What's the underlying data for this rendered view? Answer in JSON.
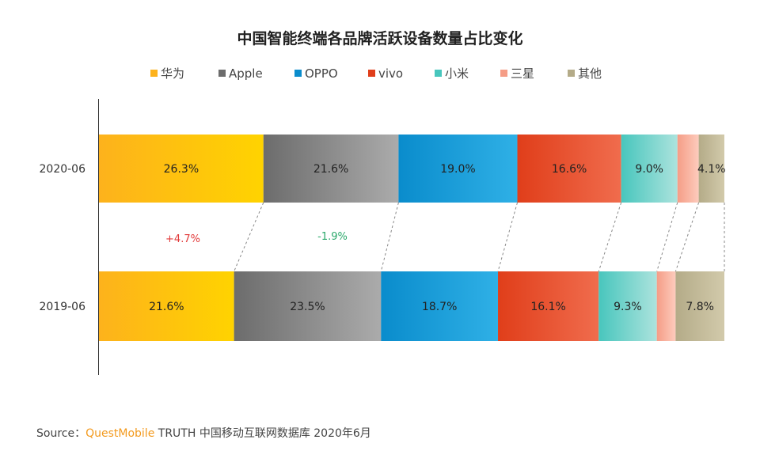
{
  "chart_data": {
    "type": "bar",
    "orientation": "horizontal",
    "stacked": true,
    "title": "中国智能终端各品牌活跃设备数量占比变化",
    "categories": [
      "2020-06",
      "2019-06"
    ],
    "series": [
      {
        "name": "华为",
        "values": [
          26.3,
          21.6
        ],
        "labels": [
          "26.3%",
          "21.6%"
        ],
        "colors": [
          "#fdb21c",
          "#ffd300"
        ]
      },
      {
        "name": "Apple",
        "values": [
          21.6,
          23.5
        ],
        "labels": [
          "21.6%",
          "23.5%"
        ],
        "colors": [
          "#6c6c6c",
          "#ababab"
        ]
      },
      {
        "name": "OPPO",
        "values": [
          19.0,
          18.7
        ],
        "labels": [
          "19.0%",
          "18.7%"
        ],
        "colors": [
          "#0a8ccc",
          "#2fb0e6"
        ]
      },
      {
        "name": "vivo",
        "values": [
          16.6,
          16.1
        ],
        "labels": [
          "16.6%",
          "16.1%"
        ],
        "colors": [
          "#e03e1a",
          "#f06c4d"
        ]
      },
      {
        "name": "小米",
        "values": [
          9.0,
          9.3
        ],
        "labels": [
          "9.0%",
          "9.3%"
        ],
        "colors": [
          "#48c6bd",
          "#acE3dd"
        ]
      },
      {
        "name": "三星",
        "values": [
          3.4,
          3.0
        ],
        "labels": [
          "",
          ""
        ],
        "colors": [
          "#f59d86",
          "#fdcbbd"
        ]
      },
      {
        "name": "其他",
        "values": [
          4.1,
          7.8
        ],
        "labels": [
          "4.1%",
          "7.8%"
        ],
        "colors": [
          "#b4ab88",
          "#d2caab"
        ]
      }
    ],
    "annotations": [
      {
        "text": "+4.7%",
        "series": "华为",
        "color": "#e23b3b"
      },
      {
        "text": "-1.9%",
        "series": "Apple",
        "color": "#2aa86a"
      }
    ],
    "xlim": [
      0,
      100
    ],
    "grid": false,
    "legend_position": "top"
  },
  "source": {
    "prefix": "Source：",
    "brand": "QuestMobile",
    "text": "TRUTH 中国移动互联网数据库 2020年6月"
  }
}
